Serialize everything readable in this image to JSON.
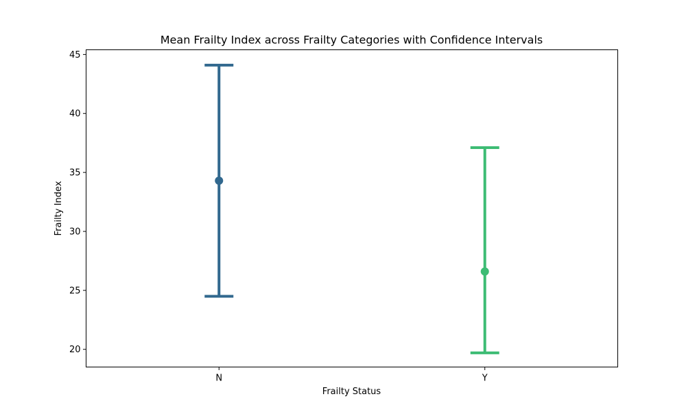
{
  "chart_data": {
    "type": "scatter",
    "title": "Mean Frailty Index across Frailty Categories with Confidence Intervals",
    "xlabel": "Frailty Status",
    "ylabel": "Frailty Index",
    "categories": [
      "N",
      "Y"
    ],
    "ylim": [
      18.5,
      45.4
    ],
    "yticks": [
      20,
      25,
      30,
      35,
      40,
      45
    ],
    "grid": false,
    "points": [
      {
        "category": "N",
        "mean": 34.3,
        "ci_low": 24.5,
        "ci_high": 44.1,
        "color": "#31688e"
      },
      {
        "category": "Y",
        "mean": 26.6,
        "ci_low": 19.7,
        "ci_high": 37.1,
        "color": "#3dbc74"
      }
    ]
  }
}
